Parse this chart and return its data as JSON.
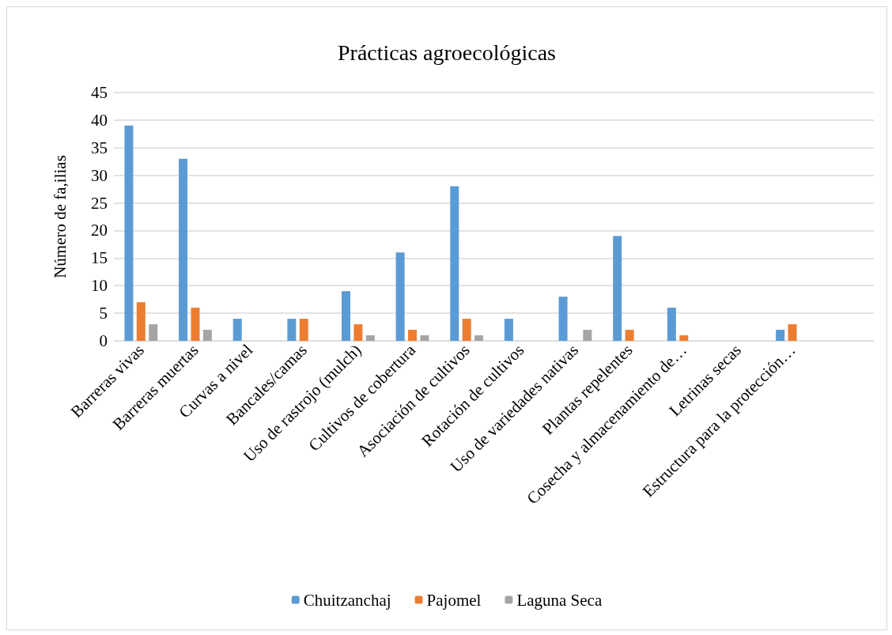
{
  "chart_data": {
    "type": "bar",
    "title": "Prácticas agroecológicas",
    "ylabel": "Número de fa,ilias",
    "categories": [
      "Barreras vivas",
      "Barreras muertas",
      "Curvas a nivel",
      "Bancales/camas",
      "Uso de rastrojo (mulch)",
      "Cultivos de cobertura",
      "Asociación de cultivos",
      "Rotación de cultivos",
      "Uso de variedades nativas",
      "Plantas repelentes",
      "Cosecha y almacenamiento de…",
      "Letrinas secas",
      "Estructura para la protección…",
      null
    ],
    "series": [
      {
        "name": "Chuitzanchaj",
        "color": "#5b9bd5",
        "values": [
          39,
          33,
          4,
          4,
          9,
          16,
          28,
          4,
          8,
          19,
          6,
          0,
          2,
          null
        ]
      },
      {
        "name": "Pajomel",
        "color": "#ed7d31",
        "values": [
          7,
          6,
          0,
          4,
          3,
          2,
          4,
          0,
          0,
          2,
          1,
          0,
          3,
          null
        ]
      },
      {
        "name": "Laguna Seca",
        "color": "#a5a5a5",
        "values": [
          3,
          2,
          0,
          0,
          1,
          1,
          1,
          0,
          2,
          0,
          0,
          0,
          0,
          null
        ]
      }
    ],
    "ylim": [
      0,
      45
    ],
    "yticks": [
      0,
      5,
      10,
      15,
      20,
      25,
      30,
      35,
      40,
      45
    ],
    "grid": "y",
    "legend": "bottom"
  }
}
